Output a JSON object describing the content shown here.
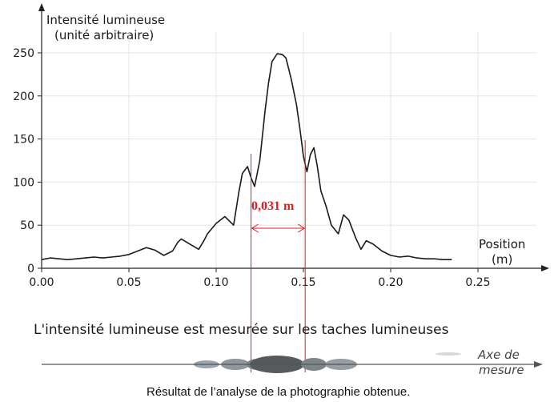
{
  "chart_data": {
    "type": "line",
    "ylabel_line1": "Intensité lumineuse",
    "ylabel_line2": "(unité arbitraire)",
    "xlabel_line1": "Position",
    "xlabel_line2": "(m)",
    "xlim": [
      0,
      0.25
    ],
    "ylim": [
      0,
      250
    ],
    "x_ticks": [
      "0.00",
      "0.05",
      "0.10",
      "0.15",
      "0.20",
      "0.25"
    ],
    "x_tick_values": [
      0,
      0.05,
      0.1,
      0.15,
      0.2,
      0.25
    ],
    "y_ticks": [
      "0",
      "50",
      "100",
      "150",
      "200",
      "250"
    ],
    "y_tick_values": [
      0,
      50,
      100,
      150,
      200,
      250
    ],
    "grid": true,
    "series": [
      {
        "x": [
          0.0,
          0.005,
          0.01,
          0.015,
          0.02,
          0.025,
          0.03,
          0.035,
          0.04,
          0.045,
          0.05,
          0.055,
          0.06,
          0.065,
          0.07,
          0.075,
          0.078,
          0.08,
          0.085,
          0.09,
          0.093,
          0.095,
          0.1,
          0.105,
          0.11,
          0.113,
          0.115,
          0.118,
          0.12,
          0.122,
          0.125,
          0.128,
          0.13,
          0.132,
          0.135,
          0.138,
          0.14,
          0.143,
          0.146,
          0.148,
          0.15,
          0.152,
          0.154,
          0.156,
          0.158,
          0.16,
          0.163,
          0.166,
          0.17,
          0.173,
          0.176,
          0.18,
          0.183,
          0.186,
          0.19,
          0.195,
          0.2,
          0.205,
          0.21,
          0.215,
          0.22,
          0.225,
          0.23,
          0.235
        ],
        "values": [
          10,
          12,
          11,
          10,
          11,
          12,
          13,
          12,
          13,
          14,
          16,
          20,
          24,
          21,
          15,
          20,
          30,
          34,
          28,
          22,
          32,
          40,
          52,
          60,
          50,
          88,
          110,
          118,
          105,
          95,
          125,
          182,
          215,
          240,
          249,
          248,
          244,
          220,
          190,
          162,
          130,
          112,
          132,
          140,
          118,
          90,
          72,
          50,
          40,
          62,
          56,
          35,
          22,
          32,
          28,
          20,
          15,
          13,
          14,
          12,
          11,
          11,
          10,
          10
        ]
      }
    ],
    "annotations": {
      "distance_label": "0,031 m",
      "marker_x": [
        0.12,
        0.151
      ]
    }
  },
  "caption_top": "L'intensité lumineuse est mesurée sur les taches lumineuses",
  "axis_label_line1": "Axe de",
  "axis_label_line2": "mesure",
  "caption_bottom": "Résultat de l’analyse de la photographie obtenue."
}
